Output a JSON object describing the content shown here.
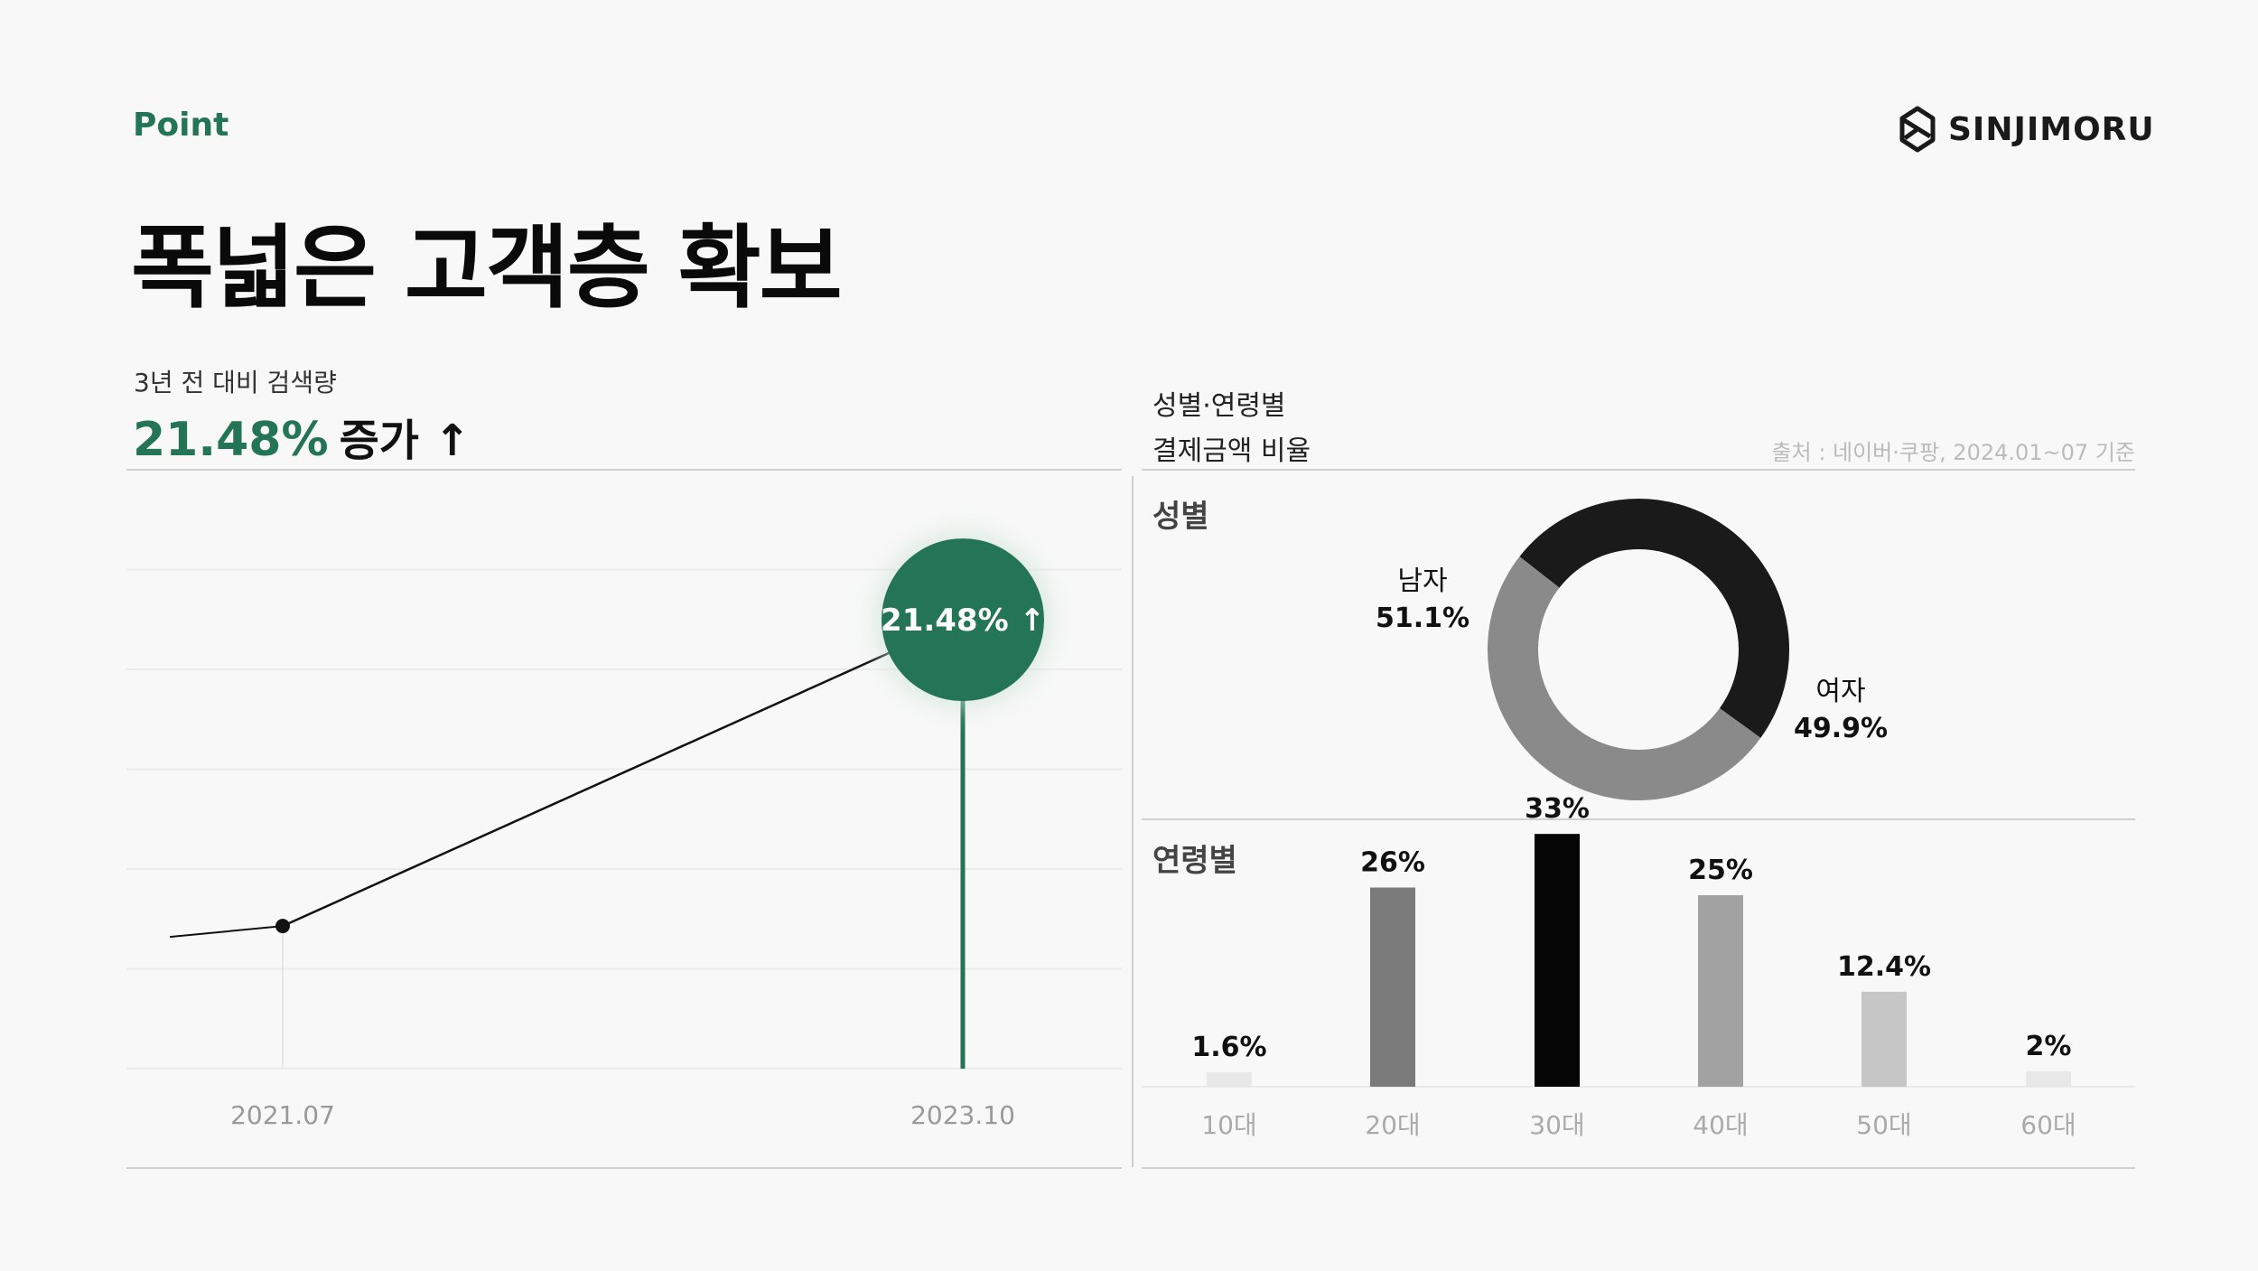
{
  "header": {
    "eyebrow": "Point",
    "title": "폭넓은 고객층 확보",
    "logo_text": "SINJIMORU"
  },
  "left_panel": {
    "subtitle": "3년 전 대비 검색량",
    "headline_value": "21.48%",
    "headline_suffix": "증가 ↑",
    "marker_label": "21.48% ↑"
  },
  "right_panel": {
    "subtitle_line1": "성별·연령별",
    "subtitle_line2": "결제금액 비율",
    "source": "출처 : 네이버·쿠팡, 2024.01~07 기준",
    "gender_title": "성별",
    "age_title": "연령별"
  },
  "colors": {
    "accent": "#247555",
    "male": "#8a8a8a",
    "female": "#1a1a1a"
  },
  "chart_data": [
    {
      "type": "line",
      "title": "",
      "x": [
        "2021.07",
        "2023.10"
      ],
      "series": [
        {
          "values": [
            100,
            121.48
          ]
        }
      ],
      "annotation": "21.48% ↑",
      "grid": true
    },
    {
      "type": "pie",
      "title": "성별",
      "categories": [
        "남자",
        "여자"
      ],
      "values": [
        51.1,
        49.9
      ],
      "labels": [
        "51.1%",
        "49.9%"
      ],
      "donut": true
    },
    {
      "type": "bar",
      "title": "연령별",
      "categories": [
        "10대",
        "20대",
        "30대",
        "40대",
        "50대",
        "60대"
      ],
      "values": [
        1.6,
        26,
        33,
        25,
        12.4,
        2
      ],
      "labels": [
        "1.6%",
        "26%",
        "33%",
        "25%",
        "12.4%",
        "2%"
      ],
      "colors": [
        "#e8e8e8",
        "#7a7a7a",
        "#050505",
        "#a2a2a2",
        "#c6c6c6",
        "#e8e8e8"
      ]
    }
  ]
}
